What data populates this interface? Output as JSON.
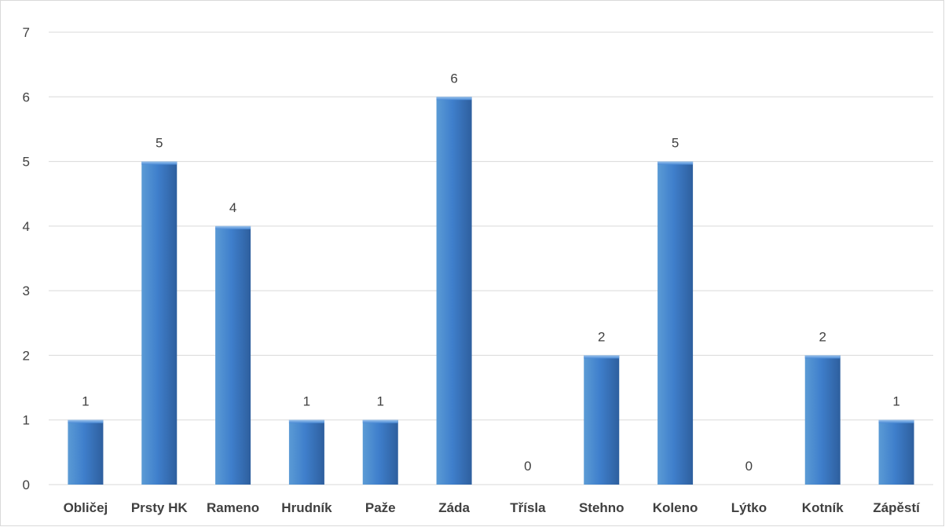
{
  "chart_data": {
    "type": "bar",
    "title": "",
    "xlabel": "",
    "ylabel": "",
    "categories": [
      "Obličej",
      "Prsty HK",
      "Rameno",
      "Hrudník",
      "Paže",
      "Záda",
      "Třísla",
      "Stehno",
      "Koleno",
      "Lýtko",
      "Kotník",
      "Zápěstí"
    ],
    "values": [
      1,
      5,
      4,
      1,
      1,
      6,
      0,
      2,
      5,
      0,
      2,
      1
    ],
    "ylim": [
      0,
      7
    ],
    "yticks": [
      0,
      1,
      2,
      3,
      4,
      5,
      6,
      7
    ],
    "grid": true,
    "legend": "none",
    "data_labels": true,
    "colors": {
      "bar_top": "#5b9bd5",
      "bar_mid": "#3f7fcc",
      "bar_bottom": "#2e5f9e",
      "grid": "#d9d9d9",
      "text": "#404040"
    }
  }
}
